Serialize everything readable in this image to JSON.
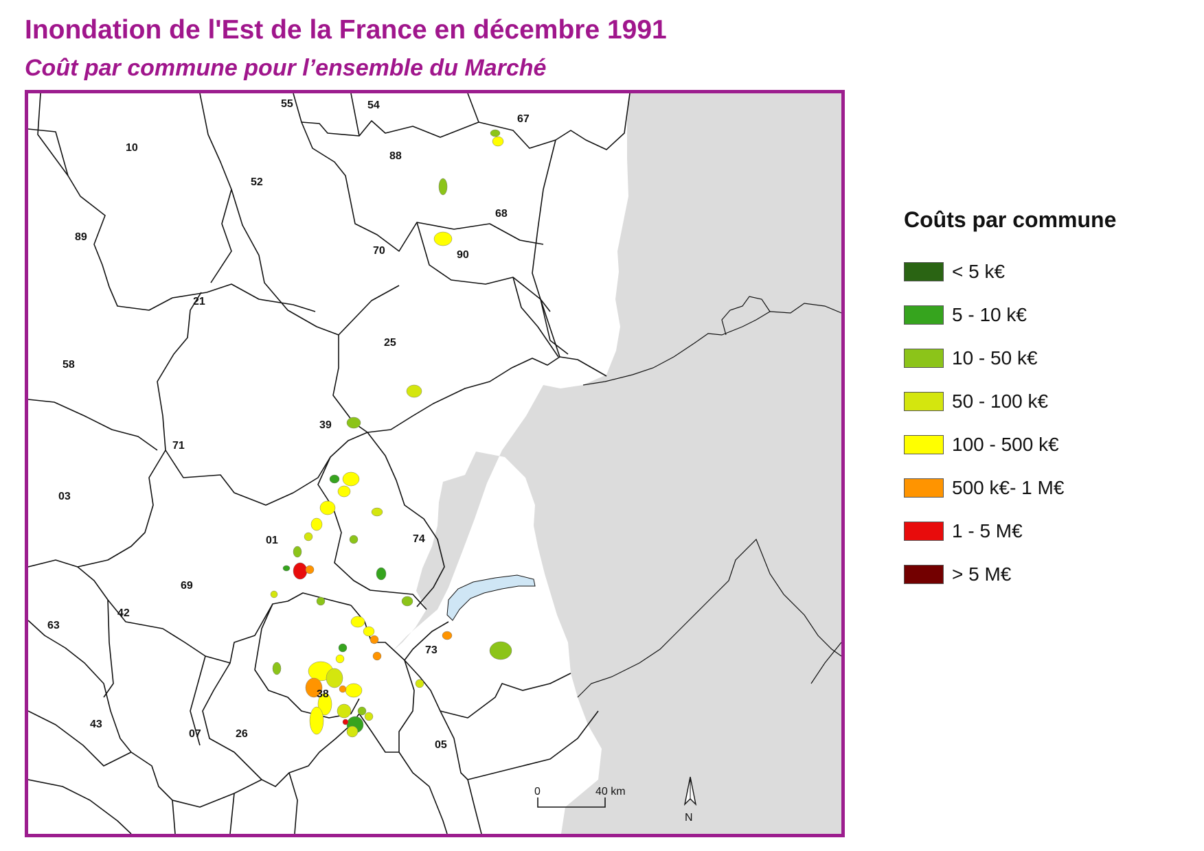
{
  "map": {
    "title": "Inondation de l'Est de la France en décembre 1991",
    "subtitle": "Coût par commune pour l’ensemble du Marché",
    "frame_color": "#9c1d8e",
    "outside_color": "#dcdcdc",
    "lake_color": "#cfe6f5",
    "departments": [
      "55",
      "54",
      "67",
      "10",
      "88",
      "52",
      "68",
      "89",
      "70",
      "90",
      "21",
      "25",
      "58",
      "39",
      "71",
      "03",
      "01",
      "74",
      "69",
      "42",
      "63",
      "73",
      "38",
      "43",
      "07",
      "26",
      "05"
    ],
    "scale": {
      "start": "0",
      "end": "40 km"
    },
    "north_label": "N"
  },
  "legend": {
    "title": "Coûts par commune",
    "items": [
      {
        "label": "< 5 k€",
        "color": "#2a6413"
      },
      {
        "label": "5 - 10 k€",
        "color": "#36a41e"
      },
      {
        "label": "10 - 50 k€",
        "color": "#8cc419"
      },
      {
        "label": "50 - 100 k€",
        "color": "#d4e60e"
      },
      {
        "label": "100 - 500 k€",
        "color": "#ffff00"
      },
      {
        "label": "500 k€- 1 M€",
        "color": "#ff9400"
      },
      {
        "label": "1 - 5 M€",
        "color": "#e80c0c"
      },
      {
        "label": "> 5 M€",
        "color": "#730000"
      }
    ]
  }
}
